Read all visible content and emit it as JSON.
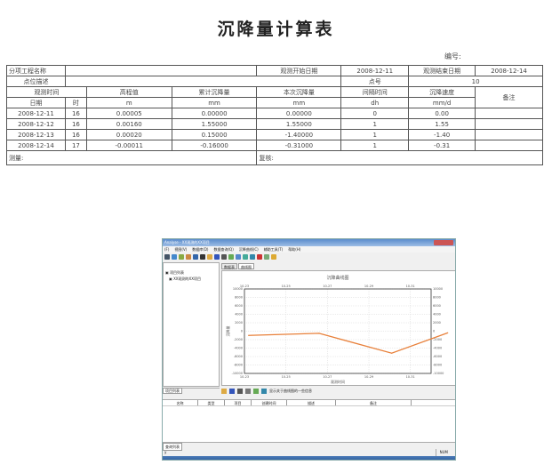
{
  "report": {
    "title": "沉降量计算表",
    "code_label": "编号:",
    "project_label": "分项工程名称",
    "project_value": "",
    "start_label": "观测开始日期",
    "start_date": "2008-12-11",
    "end_label": "观测结束日期",
    "end_date": "2008-12-14",
    "point_desc_label": "点位描述",
    "point_desc_value": "",
    "point_no_label": "点号",
    "point_no": "10",
    "headers": {
      "obs_time": "观测时间",
      "elevation": "高程值",
      "cum": "累计沉降量",
      "this": "本次沉降量",
      "interval": "间隔时间",
      "rate": "沉降速度",
      "remark": "备注"
    },
    "units": {
      "date": "日期",
      "hour": "时",
      "elevation": "m",
      "cum": "mm",
      "this": "mm",
      "interval": "dh",
      "rate": "mm/d"
    },
    "rows": [
      {
        "date": "2008-12-11",
        "hour": "16",
        "elevation": "0.00005",
        "cum": "0.00000",
        "this": "0.00000",
        "interval": "0",
        "rate": "0.00",
        "remark": ""
      },
      {
        "date": "2008-12-12",
        "hour": "16",
        "elevation": "0.00160",
        "cum": "1.55000",
        "this": "1.55000",
        "interval": "1",
        "rate": "1.55",
        "remark": ""
      },
      {
        "date": "2008-12-13",
        "hour": "16",
        "elevation": "0.00020",
        "cum": "0.15000",
        "this": "-1.40000",
        "interval": "1",
        "rate": "-1.40",
        "remark": ""
      },
      {
        "date": "2008-12-14",
        "hour": "17",
        "elevation": "-0.00011",
        "cum": "-0.16000",
        "this": "-0.31000",
        "interval": "1",
        "rate": "-0.31",
        "remark": ""
      }
    ],
    "measure_label": "测量:",
    "check_label": "复核:"
  },
  "app": {
    "title": "Analyse - XX观测的XX项目",
    "menu": [
      "(F)",
      "视图(V)",
      "数据库(D)",
      "数据查询(Q)",
      "沉降曲线(C)",
      "辅助工具(T)",
      "帮助(H)"
    ],
    "tree_root": "项目列表",
    "tree_child": "XX观测的XX项目",
    "tabs": [
      "数据表",
      "曲线图"
    ],
    "bottom_hint": "显示关于曲线图的一些信息",
    "list_headers": [
      "名称",
      "类型",
      "项目",
      "创建时间",
      "描述",
      "备注"
    ],
    "left_tab": "项目列表",
    "bottom_tab": "查询列表",
    "status_left": "y",
    "status_num": "NUM"
  },
  "chart_data": {
    "type": "line",
    "title": "沉降曲线图",
    "xlabel": "观测时间",
    "ylabel": "沉降量",
    "x_ticks": [
      "10-23",
      "10-25",
      "10-27",
      "10-29",
      "10-31"
    ],
    "ylim": [
      -10000,
      10000
    ],
    "y_ticks": [
      10000,
      8000,
      6000,
      4000,
      2000,
      0,
      -2000,
      -4000,
      -6000,
      -8000,
      -10000
    ],
    "grid": true,
    "color": "#e8803a",
    "x": [
      0.2,
      3.6,
      7.1,
      9.8
    ],
    "values": [
      -1000,
      -500,
      -5200,
      -400
    ]
  }
}
